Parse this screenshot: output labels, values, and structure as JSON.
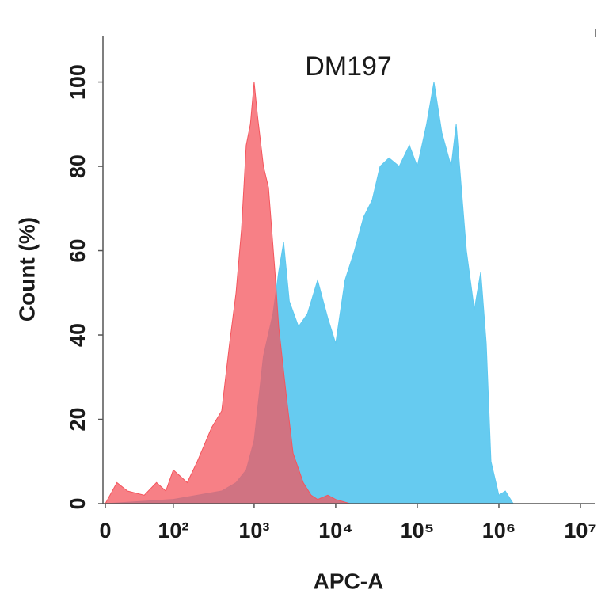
{
  "chart_data": {
    "type": "area",
    "title": "DM197",
    "x_label": "APC-A",
    "y_label": "Count  (%)",
    "xscale": "asinh",
    "xlim": [
      0,
      10000000
    ],
    "xticks": [
      0,
      {
        "value": 100,
        "label": "10²"
      },
      {
        "value": 1000,
        "label": "10³"
      },
      {
        "value": 10000,
        "label": "10⁴"
      },
      {
        "value": 100000,
        "label": "10⁵"
      },
      {
        "value": 1000000,
        "label": "10⁶"
      },
      {
        "value": 10000000,
        "label": "10⁷"
      }
    ],
    "ylim": [
      0,
      111
    ],
    "yticks": [
      0,
      20,
      40,
      60,
      80,
      100
    ],
    "series": [
      {
        "name": "blue",
        "color": "#5ec8ef",
        "x": [
          0,
          100,
          200,
          400,
          600,
          800,
          1000,
          1300,
          1700,
          2000,
          2300,
          2700,
          3500,
          4500,
          6000,
          8000,
          10000,
          13000,
          17000,
          22000,
          28000,
          35000,
          45000,
          60000,
          80000,
          100000,
          130000,
          160000,
          200000,
          260000,
          300000,
          400000,
          500000,
          600000,
          700000,
          800000,
          1000000,
          1200000,
          1500000
        ],
        "values": [
          0,
          1,
          2,
          3,
          5,
          8,
          15,
          35,
          45,
          55,
          62,
          48,
          42,
          45,
          53,
          44,
          38,
          53,
          60,
          68,
          72,
          80,
          82,
          80,
          85,
          80,
          90,
          100,
          88,
          80,
          90,
          60,
          46,
          55,
          38,
          10,
          2,
          3,
          0
        ]
      },
      {
        "name": "red",
        "color": "#f4555d",
        "x": [
          0,
          10,
          20,
          40,
          60,
          80,
          100,
          150,
          200,
          300,
          400,
          500,
          600,
          700,
          800,
          900,
          1000,
          1100,
          1300,
          1500,
          1800,
          2000,
          2500,
          3000,
          4000,
          5000,
          6000,
          8000,
          10000,
          15000
        ],
        "values": [
          0,
          5,
          3,
          2,
          5,
          3,
          8,
          5,
          10,
          18,
          22,
          38,
          50,
          65,
          85,
          90,
          100,
          92,
          80,
          75,
          55,
          42,
          25,
          12,
          5,
          2,
          1,
          2,
          1,
          0
        ]
      }
    ]
  }
}
